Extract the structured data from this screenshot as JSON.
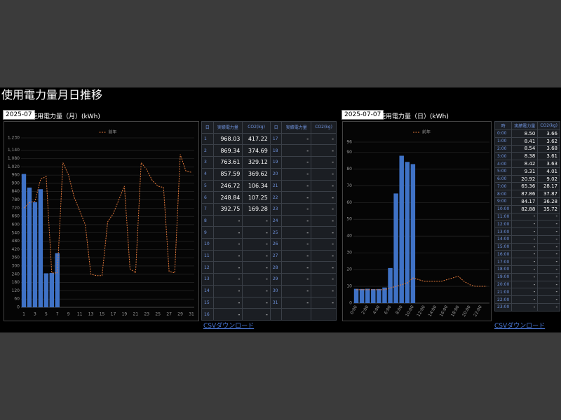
{
  "title": "使用電力量月日推移",
  "monthly": {
    "date": "2025-07",
    "label": "使用電力量（月）(kWh)",
    "csv": "CSVダウンロード",
    "table": {
      "header": [
        "日",
        "実績電力量",
        "CO2(kg)",
        "日",
        "実績電力量",
        "CO2(kg)"
      ],
      "rows": [
        [
          "1",
          "968.03",
          "417.22",
          "17",
          "-",
          "-"
        ],
        [
          "2",
          "869.34",
          "374.69",
          "18",
          "-",
          "-"
        ],
        [
          "3",
          "763.61",
          "329.12",
          "19",
          "-",
          "-"
        ],
        [
          "4",
          "857.59",
          "369.62",
          "20",
          "-",
          "-"
        ],
        [
          "5",
          "246.72",
          "106.34",
          "21",
          "-",
          "-"
        ],
        [
          "6",
          "248.84",
          "107.25",
          "22",
          "-",
          "-"
        ],
        [
          "7",
          "392.75",
          "169.28",
          "23",
          "-",
          "-"
        ],
        [
          "8",
          "-",
          "-",
          "24",
          "-",
          "-"
        ],
        [
          "9",
          "-",
          "-",
          "25",
          "-",
          "-"
        ],
        [
          "10",
          "-",
          "-",
          "26",
          "-",
          "-"
        ],
        [
          "11",
          "-",
          "-",
          "27",
          "-",
          "-"
        ],
        [
          "12",
          "-",
          "-",
          "28",
          "-",
          "-"
        ],
        [
          "13",
          "-",
          "-",
          "29",
          "-",
          "-"
        ],
        [
          "14",
          "-",
          "-",
          "30",
          "-",
          "-"
        ],
        [
          "15",
          "-",
          "-",
          "31",
          "-",
          "-"
        ],
        [
          "16",
          "-",
          "-",
          null,
          null,
          null
        ]
      ]
    }
  },
  "daily": {
    "date": "2025-07-07",
    "label": "使用電力量（日）(kWh)",
    "csv": "CSVダウンロード",
    "table": {
      "header": [
        "時",
        "実績電力量",
        "CO2(kg)"
      ],
      "rows": [
        [
          "0:00",
          "8.50",
          "3.66"
        ],
        [
          "1:00",
          "8.41",
          "3.62"
        ],
        [
          "2:00",
          "8.54",
          "3.68"
        ],
        [
          "3:00",
          "8.38",
          "3.61"
        ],
        [
          "4:00",
          "8.42",
          "3.63"
        ],
        [
          "5:00",
          "9.31",
          "4.01"
        ],
        [
          "6:00",
          "20.92",
          "9.02"
        ],
        [
          "7:00",
          "65.36",
          "28.17"
        ],
        [
          "8:00",
          "87.86",
          "37.87"
        ],
        [
          "9:00",
          "84.17",
          "36.28"
        ],
        [
          "10:00",
          "82.88",
          "35.72"
        ],
        [
          "11:00",
          "-",
          "-"
        ],
        [
          "12:00",
          "-",
          "-"
        ],
        [
          "13:00",
          "-",
          "-"
        ],
        [
          "14:00",
          "-",
          "-"
        ],
        [
          "15:00",
          "-",
          "-"
        ],
        [
          "16:00",
          "-",
          "-"
        ],
        [
          "17:00",
          "-",
          "-"
        ],
        [
          "18:00",
          "-",
          "-"
        ],
        [
          "19:00",
          "-",
          "-"
        ],
        [
          "20:00",
          "-",
          "-"
        ],
        [
          "21:00",
          "-",
          "-"
        ],
        [
          "22:00",
          "-",
          "-"
        ],
        [
          "23:00",
          "-",
          "-"
        ]
      ]
    }
  },
  "chart_data": [
    {
      "type": "bar",
      "categories": [
        "1",
        null,
        "3",
        null,
        "5",
        null,
        "7",
        null,
        "9",
        null,
        "11",
        null,
        "13",
        null,
        "15",
        null,
        "17",
        null,
        "19",
        null,
        "21",
        null,
        "23",
        null,
        "25",
        null,
        "27",
        null,
        "29",
        null,
        "31"
      ],
      "series": [
        {
          "type": "bar",
          "color": "#3f72c6",
          "values": [
            968.03,
            869.34,
            763.61,
            857.59,
            246.72,
            248.84,
            392.75,
            null,
            null,
            null,
            null,
            null,
            null,
            null,
            null,
            null,
            null,
            null,
            null,
            null,
            null,
            null,
            null,
            null,
            null,
            null,
            null,
            null,
            null,
            null,
            null
          ]
        },
        {
          "type": "line",
          "name": "前年",
          "color": "#e2793a",
          "values": [
            720,
            760,
            770,
            930,
            950,
            250,
            250,
            1050,
            960,
            800,
            700,
            600,
            240,
            230,
            230,
            620,
            680,
            780,
            880,
            280,
            250,
            1050,
            1000,
            920,
            880,
            870,
            260,
            250,
            1110,
            990,
            980
          ]
        }
      ],
      "ylim": [
        0,
        1230
      ],
      "yticks": [
        0,
        60,
        120,
        180,
        240,
        300,
        360,
        420,
        480,
        540,
        600,
        660,
        720,
        780,
        840,
        900,
        960,
        {
          "value": 1020,
          "label": "1,020"
        },
        {
          "value": 1080,
          "label": "1,080"
        },
        {
          "value": 1140,
          "label": "1,140"
        },
        {
          "value": 1230,
          "label": "1,230"
        }
      ],
      "grid": true
    },
    {
      "type": "bar",
      "categories": [
        "0:00",
        null,
        "2:00",
        null,
        "4:00",
        null,
        "6:00",
        null,
        "8:00",
        null,
        "10:00",
        null,
        "12:00",
        null,
        "14:00",
        null,
        "16:00",
        null,
        "18:00",
        null,
        "20:00",
        null,
        "22:00",
        null
      ],
      "series": [
        {
          "type": "bar",
          "color": "#3f72c6",
          "values": [
            8.5,
            8.41,
            8.54,
            8.38,
            8.42,
            9.31,
            20.92,
            65.36,
            87.86,
            84.17,
            82.88,
            null,
            null,
            null,
            null,
            null,
            null,
            null,
            null,
            null,
            null,
            null,
            null,
            null
          ]
        },
        {
          "type": "line",
          "name": "前年",
          "color": "#e2793a",
          "values": [
            8,
            8,
            8,
            8,
            8,
            8,
            9,
            10,
            11,
            12,
            15,
            14,
            13,
            13,
            13,
            13,
            14,
            15,
            16,
            13,
            11,
            10,
            10,
            10
          ]
        }
      ],
      "ylim": [
        0,
        96
      ],
      "yticks": [
        0,
        10,
        20,
        30,
        40,
        50,
        60,
        70,
        80,
        90,
        96
      ],
      "grid": true
    }
  ]
}
